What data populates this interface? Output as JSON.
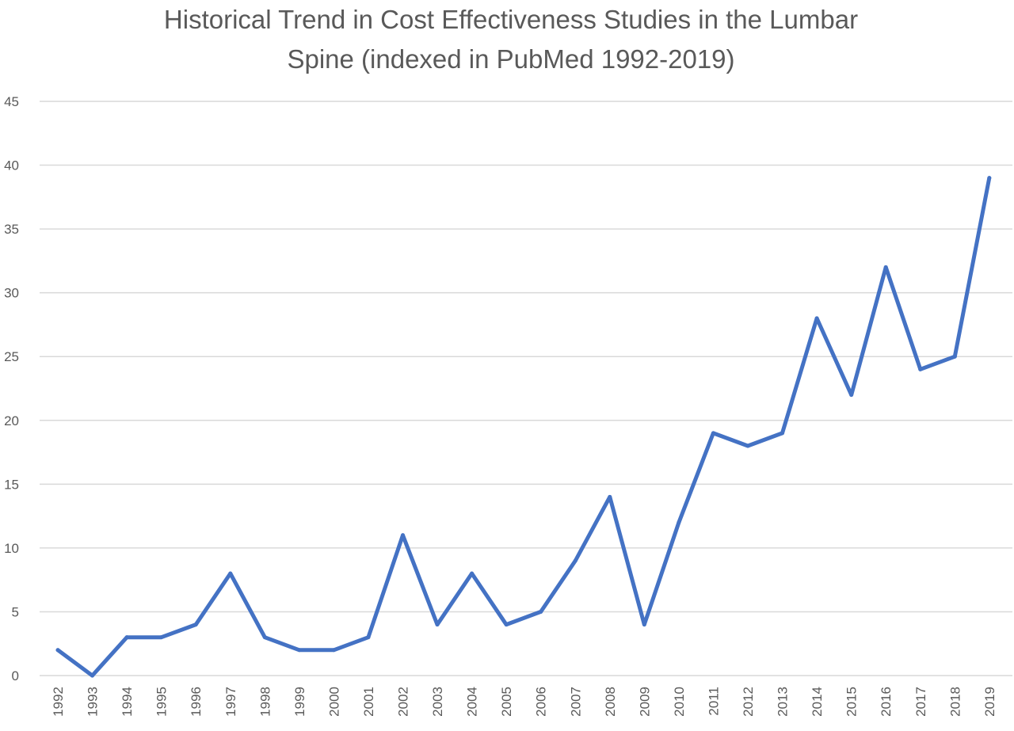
{
  "chart_data": {
    "type": "line",
    "title": "Historical Trend in Cost Effectiveness Studies in the Lumbar Spine (indexed in PubMed 1992-2019)",
    "title_lines": [
      "Historical Trend in Cost Effectiveness Studies in the Lumbar",
      "Spine (indexed in PubMed 1992-2019)"
    ],
    "xlabel": "",
    "ylabel": "",
    "categories": [
      "1992",
      "1993",
      "1994",
      "1995",
      "1996",
      "1997",
      "1998",
      "1999",
      "2000",
      "2001",
      "2002",
      "2003",
      "2004",
      "2005",
      "2006",
      "2007",
      "2008",
      "2009",
      "2010",
      "2011",
      "2012",
      "2013",
      "2014",
      "2015",
      "2016",
      "2017",
      "2018",
      "2019"
    ],
    "series": [
      {
        "values": [
          2,
          0,
          3,
          3,
          4,
          8,
          3,
          2,
          2,
          3,
          11,
          4,
          8,
          4,
          5,
          9,
          14,
          4,
          12,
          19,
          18,
          19,
          28,
          22,
          32,
          24,
          25,
          39
        ],
        "color": "#4472c4"
      }
    ],
    "ylim": [
      0,
      45
    ],
    "yticks": [
      0,
      5,
      10,
      15,
      20,
      25,
      30,
      35,
      40,
      45
    ],
    "grid": true,
    "legend": "none"
  }
}
